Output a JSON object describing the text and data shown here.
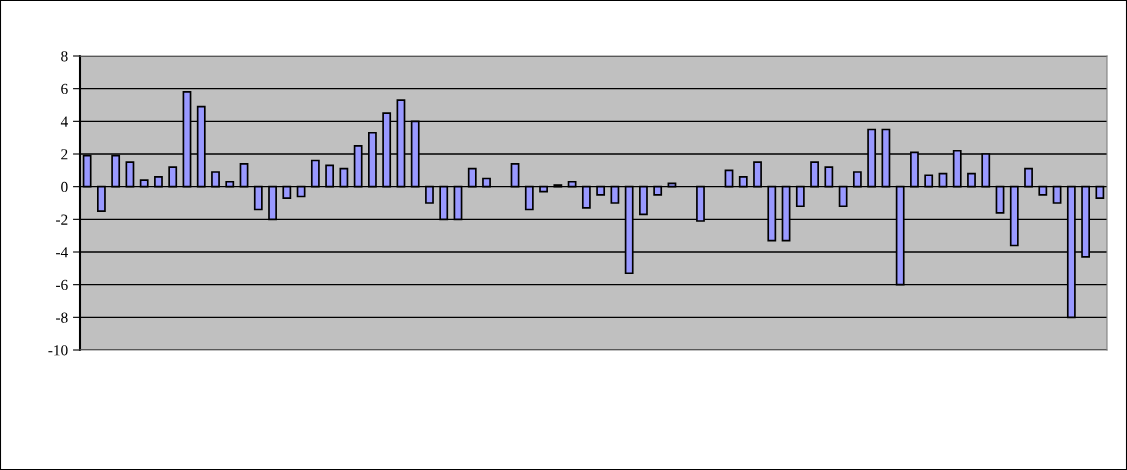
{
  "chart_data": {
    "type": "bar",
    "categories": [
      null,
      null,
      null,
      null,
      null,
      null,
      null,
      null,
      null,
      null,
      null,
      null,
      null,
      null,
      null,
      null,
      null,
      null,
      null,
      null,
      null,
      null,
      null,
      null,
      null,
      null,
      null,
      null,
      null,
      null,
      null,
      null,
      null,
      null,
      null,
      null,
      null,
      null,
      null,
      null,
      null,
      null,
      null,
      null,
      null,
      null,
      null,
      null,
      null,
      null,
      null,
      null,
      null,
      null,
      null,
      null,
      null,
      null,
      null,
      null,
      null,
      null,
      null,
      null,
      null,
      null,
      null,
      null,
      null,
      null,
      null,
      null
    ],
    "values": [
      1.9,
      -1.5,
      1.9,
      1.5,
      0.4,
      0.6,
      1.2,
      5.8,
      4.9,
      0.9,
      0.3,
      1.4,
      -1.4,
      -2.0,
      -0.7,
      -0.6,
      1.6,
      1.3,
      1.1,
      2.5,
      3.3,
      4.5,
      5.3,
      4.0,
      -1.0,
      -2.0,
      -2.0,
      1.1,
      0.5,
      null,
      1.4,
      -1.4,
      -0.3,
      0.1,
      0.3,
      -1.3,
      -0.5,
      -1.0,
      -5.3,
      -1.7,
      -0.5,
      0.2,
      null,
      -2.1,
      null,
      1.0,
      0.6,
      1.5,
      -3.3,
      -3.3,
      -1.2,
      1.5,
      1.2,
      -1.2,
      0.9,
      3.5,
      3.5,
      -6.0,
      2.1,
      0.7,
      0.8,
      2.2,
      0.8,
      2.0,
      -1.6,
      -3.6,
      1.1,
      -0.5,
      -1.0,
      -8.0,
      -4.3,
      -0.7
    ],
    "color": "#9999ff",
    "ylim": [
      -10,
      8
    ],
    "yticks": [
      -10,
      -8,
      -6,
      -4,
      -2,
      0,
      2,
      4,
      6,
      8
    ],
    "grid": "y",
    "tick_labels": "y"
  }
}
